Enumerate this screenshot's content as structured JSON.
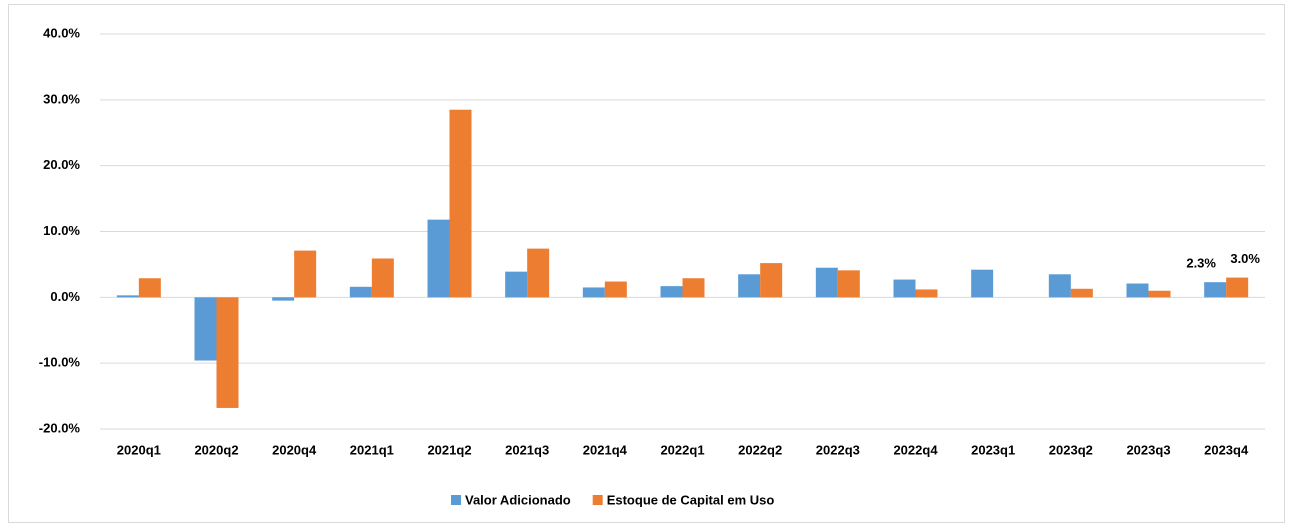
{
  "chart_data": {
    "type": "bar",
    "categories": [
      "2020q1",
      "2020q2",
      "2020q4",
      "2021q1",
      "2021q2",
      "2021q3",
      "2021q4",
      "2022q1",
      "2022q2",
      "2022q3",
      "2022q4",
      "2023q1",
      "2023q2",
      "2023q3",
      "2023q4"
    ],
    "series": [
      {
        "name": "Valor Adicionado",
        "color": "#5b9bd5",
        "values": [
          0.3,
          -9.6,
          -0.5,
          1.6,
          11.8,
          3.9,
          1.5,
          1.7,
          3.5,
          4.5,
          2.7,
          4.2,
          3.5,
          2.1,
          2.3
        ],
        "value_labels": [
          null,
          null,
          null,
          null,
          null,
          null,
          null,
          null,
          null,
          null,
          null,
          null,
          null,
          null,
          "2.3%"
        ]
      },
      {
        "name": "Estoque de Capital em Uso",
        "color": "#ed7d31",
        "values": [
          2.9,
          -16.8,
          7.1,
          5.9,
          28.5,
          7.4,
          2.4,
          2.9,
          5.2,
          4.1,
          1.2,
          null,
          1.3,
          1.0,
          3.0
        ],
        "value_labels": [
          null,
          null,
          null,
          null,
          null,
          null,
          null,
          null,
          null,
          null,
          null,
          null,
          null,
          null,
          "3.0%"
        ]
      }
    ],
    "ylim": [
      -20,
      40
    ],
    "yticks": [
      {
        "value": -20,
        "label": "-20.0%"
      },
      {
        "value": -10,
        "label": "-10.0%"
      },
      {
        "value": 0,
        "label": "0.0%"
      },
      {
        "value": 10,
        "label": "10.0%"
      },
      {
        "value": 20,
        "label": "20.0%"
      },
      {
        "value": 30,
        "label": "30.0%"
      },
      {
        "value": 40,
        "label": "40.0%"
      }
    ],
    "grid": true,
    "legend": "bottom"
  }
}
